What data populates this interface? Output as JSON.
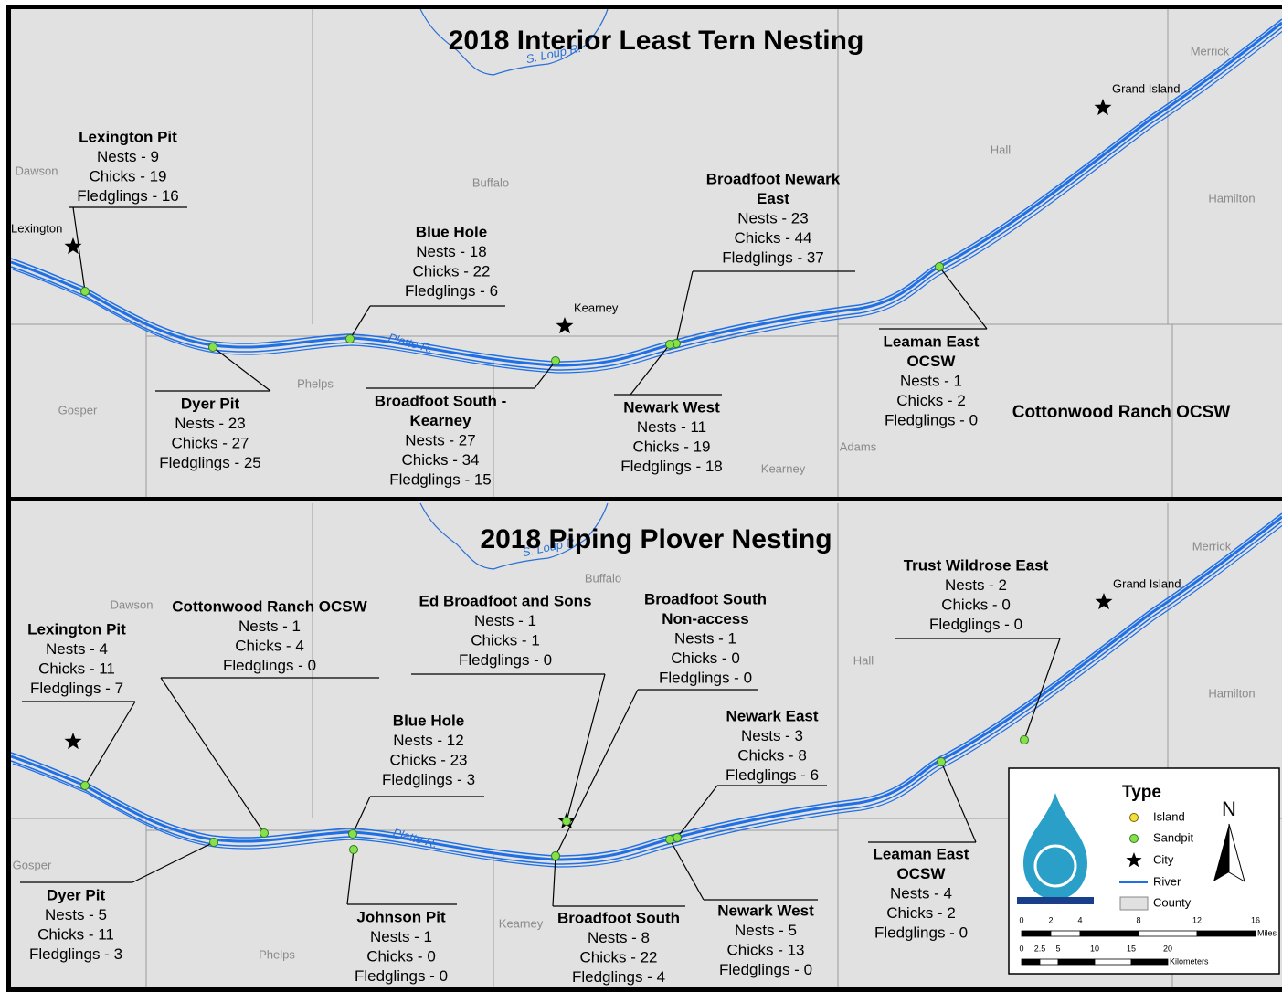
{
  "panels": [
    {
      "title": "2018 Interior Least Tern Nesting",
      "counties": [
        "Dawson",
        "Buffalo",
        "Hall",
        "Merrick",
        "Hamilton",
        "Phelps",
        "Gosper",
        "Kearney",
        "Adams"
      ],
      "cities": [
        "Lexington",
        "Kearney",
        "Grand Island"
      ],
      "rivers": [
        "S. Loup R.",
        "Platte R."
      ],
      "notes": [
        "Cottonwood Ranch OCSW"
      ],
      "sites": [
        {
          "name": [
            "Lexington Pit"
          ],
          "stats": [
            "Nests - 9",
            "Chicks - 19",
            "Fledglings - 16"
          ]
        },
        {
          "name": [
            "Blue Hole"
          ],
          "stats": [
            "Nests - 18",
            "Chicks - 22",
            "Fledglings - 6"
          ]
        },
        {
          "name": [
            "Broadfoot Newark",
            "East"
          ],
          "stats": [
            "Nests - 23",
            "Chicks - 44",
            "Fledglings - 37"
          ]
        },
        {
          "name": [
            "Dyer Pit"
          ],
          "stats": [
            "Nests - 23",
            "Chicks - 27",
            "Fledglings - 25"
          ]
        },
        {
          "name": [
            "Broadfoot South -",
            "Kearney"
          ],
          "stats": [
            "Nests - 27",
            "Chicks - 34",
            "Fledglings - 15"
          ]
        },
        {
          "name": [
            "Newark West"
          ],
          "stats": [
            "Nests - 11",
            "Chicks - 19",
            "Fledglings - 18"
          ]
        },
        {
          "name": [
            "Leaman East",
            "OCSW"
          ],
          "stats": [
            "Nests - 1",
            "Chicks - 2",
            "Fledglings - 0"
          ]
        }
      ]
    },
    {
      "title": "2018 Piping Plover Nesting",
      "counties": [
        "Merrick",
        "Hamilton",
        "Dawson",
        "Buffalo",
        "Hall",
        "Gosper",
        "Phelps",
        "Kearney"
      ],
      "cities": [
        "Grand Island"
      ],
      "rivers": [
        "S. Loup R.",
        "Platte R."
      ],
      "sites": [
        {
          "name": [
            "Lexington Pit"
          ],
          "stats": [
            "Nests - 4",
            "Chicks - 11",
            "Fledglings - 7"
          ]
        },
        {
          "name": [
            "Cottonwood Ranch OCSW"
          ],
          "stats": [
            "Nests - 1",
            "Chicks - 4",
            "Fledglings - 0"
          ]
        },
        {
          "name": [
            "Ed Broadfoot and Sons"
          ],
          "stats": [
            "Nests - 1",
            "Chicks - 1",
            "Fledglings - 0"
          ]
        },
        {
          "name": [
            "Broadfoot South",
            "Non-access"
          ],
          "stats": [
            "Nests - 1",
            "Chicks - 0",
            "Fledglings - 0"
          ]
        },
        {
          "name": [
            "Trust Wildrose East"
          ],
          "stats": [
            "Nests - 2",
            "Chicks - 0",
            "Fledglings - 0"
          ]
        },
        {
          "name": [
            "Blue Hole"
          ],
          "stats": [
            "Nests - 12",
            "Chicks - 23",
            "Fledglings - 3"
          ]
        },
        {
          "name": [
            "Newark East"
          ],
          "stats": [
            "Nests - 3",
            "Chicks - 8",
            "Fledglings - 6"
          ]
        },
        {
          "name": [
            "Leaman East",
            "OCSW"
          ],
          "stats": [
            "Nests - 4",
            "Chicks - 2",
            "Fledglings - 0"
          ]
        },
        {
          "name": [
            "Dyer Pit"
          ],
          "stats": [
            "Nests - 5",
            "Chicks - 11",
            "Fledglings - 3"
          ]
        },
        {
          "name": [
            "Johnson Pit"
          ],
          "stats": [
            "Nests - 1",
            "Chicks - 0",
            "Fledglings - 0"
          ]
        },
        {
          "name": [
            "Broadfoot South"
          ],
          "stats": [
            "Nests - 8",
            "Chicks - 22",
            "Fledglings - 4"
          ]
        },
        {
          "name": [
            "Newark West"
          ],
          "stats": [
            "Nests - 5",
            "Chicks - 13",
            "Fledglings - 0"
          ]
        }
      ]
    }
  ],
  "legend": {
    "title": "Type",
    "items": [
      "Island",
      "Sandpit",
      "City",
      "River",
      "County"
    ],
    "north": "N",
    "miles": [
      "0",
      "2",
      "4",
      "8",
      "12",
      "16"
    ],
    "miles_unit": "Miles",
    "km": [
      "0",
      "2.5",
      "5",
      "10",
      "15",
      "20"
    ],
    "km_unit": "Kilometers"
  }
}
